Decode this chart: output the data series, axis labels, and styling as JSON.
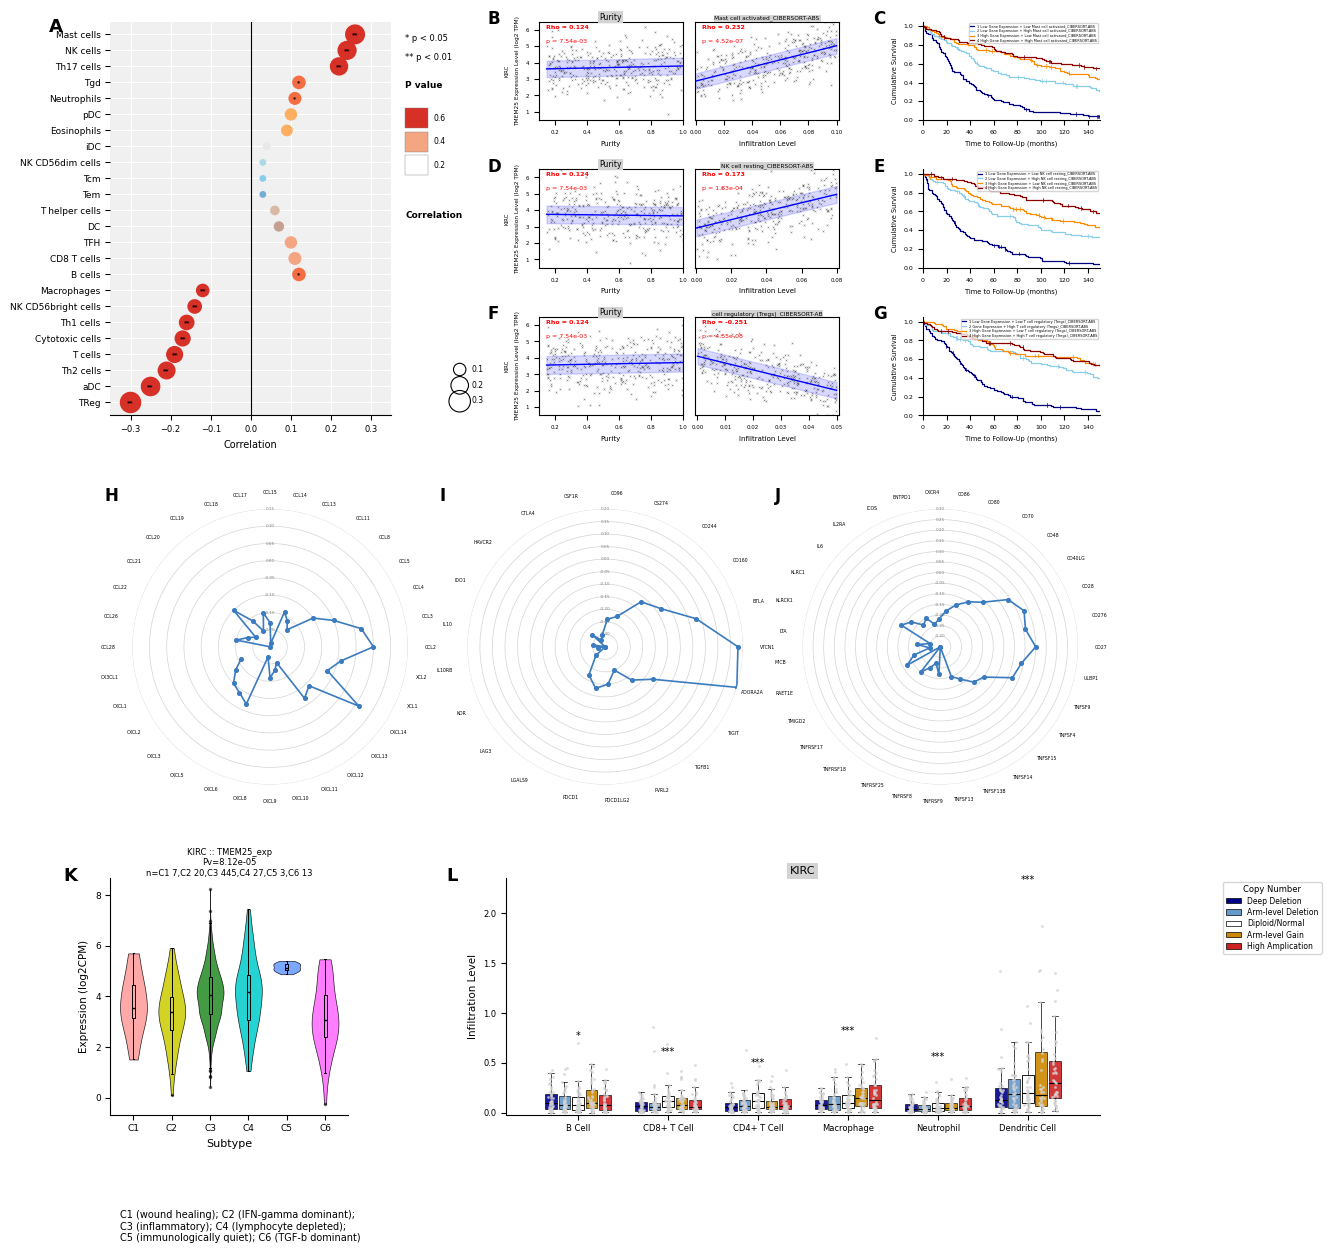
{
  "panel_A": {
    "cell_types": [
      "Mast cells",
      "NK cells",
      "Th17 cells",
      "Tgd",
      "Neutrophils",
      "pDC",
      "Eosinophils",
      "iDC",
      "NK CD56dim cells",
      "Tcm",
      "Tem",
      "T helper cells",
      "DC",
      "TFH",
      "CD8 T cells",
      "B cells",
      "Macrophages",
      "NK CD56bright cells",
      "Th1 cells",
      "Cytotoxic cells",
      "T cells",
      "Th2 cells",
      "aDC",
      "TReg"
    ],
    "correlations": [
      0.26,
      0.24,
      0.22,
      0.12,
      0.11,
      0.1,
      0.09,
      0.04,
      0.03,
      0.03,
      0.03,
      0.06,
      0.07,
      0.1,
      0.11,
      0.12,
      -0.12,
      -0.14,
      -0.16,
      -0.17,
      -0.19,
      -0.21,
      -0.25,
      -0.3
    ],
    "p_values": [
      0.001,
      0.001,
      0.001,
      0.03,
      0.04,
      0.08,
      0.12,
      0.5,
      0.6,
      0.65,
      0.7,
      0.4,
      0.35,
      0.1,
      0.08,
      0.04,
      0.005,
      0.002,
      0.002,
      0.003,
      0.004,
      0.001,
      0.001,
      0.001
    ],
    "sig_labels": [
      "**",
      "**",
      "**",
      "*",
      "*",
      "",
      "",
      "",
      "",
      "",
      "",
      "",
      "",
      "",
      "",
      "*",
      "**",
      "**",
      "**",
      "**",
      "**",
      "**",
      "**",
      "**"
    ],
    "dot_colors_hex": [
      "#d73027",
      "#d73027",
      "#d73027",
      "#f46d43",
      "#f46d43",
      "#fdae61",
      "#fdae61",
      "#e8e8e8",
      "#add8e6",
      "#87ceeb",
      "#74add1",
      "#d8b9a4",
      "#c5a090",
      "#f4a582",
      "#f4a582",
      "#f46d43",
      "#d73027",
      "#d73027",
      "#d73027",
      "#d73027",
      "#d73027",
      "#d73027",
      "#d73027",
      "#d73027"
    ],
    "dot_sizes": [
      0.26,
      0.24,
      0.22,
      0.12,
      0.11,
      0.1,
      0.09,
      0.04,
      0.03,
      0.03,
      0.03,
      0.06,
      0.07,
      0.1,
      0.11,
      0.12,
      0.12,
      0.14,
      0.16,
      0.17,
      0.19,
      0.21,
      0.25,
      0.3
    ]
  },
  "panel_H_labels": [
    "CCL2",
    "CCL3",
    "CCL4",
    "CCL5",
    "CCL8",
    "CCL11",
    "CCL13",
    "CCL14",
    "CCL15",
    "CCL17",
    "CCL18",
    "CCL19",
    "CCL20",
    "CCL21",
    "CCL22",
    "CCL26",
    "CCL28",
    "CX3CL1",
    "CXCL1",
    "CXCL2",
    "CXCL3",
    "CXCL5",
    "CXCL6",
    "CXCL8",
    "CXCL9",
    "CXCL10",
    "CXCL11",
    "CXCL12",
    "CXCL13",
    "CXCL14",
    "XCL1",
    "XCL2"
  ],
  "panel_H_values": [
    0.05,
    0.02,
    -0.05,
    -0.1,
    -0.18,
    -0.16,
    -0.14,
    -0.24,
    -0.18,
    -0.15,
    -0.2,
    -0.16,
    -0.1,
    -0.2,
    -0.18,
    -0.15,
    -0.25,
    -0.27,
    -0.16,
    -0.13,
    -0.1,
    -0.09,
    -0.07,
    -0.22,
    -0.16,
    -0.18,
    -0.2,
    -0.07,
    -0.09,
    0.06,
    -0.07,
    -0.04
  ],
  "panel_H_grid": [
    -0.25,
    -0.2,
    -0.15,
    -0.1,
    -0.05,
    0.0,
    0.05,
    0.1,
    0.15
  ],
  "panel_I_labels": [
    "VTCN1",
    "BTLA",
    "CD160",
    "CD244",
    "CS274",
    "CD96",
    "CSF1R",
    "CTLA4",
    "HAVCR2",
    "IDO1",
    "IL10",
    "IL10RB",
    "KDR",
    "LAG3",
    "LGALS9",
    "PDCD1",
    "PDCD1LG2",
    "PVRL2",
    "TGFB1",
    "TIGIT",
    "ADORA2A"
  ],
  "panel_I_values": [
    0.18,
    0.03,
    -0.08,
    -0.12,
    -0.22,
    -0.24,
    -0.3,
    -0.32,
    -0.28,
    -0.35,
    -0.3,
    -0.32,
    -0.35,
    -0.3,
    -0.22,
    -0.18,
    -0.2,
    -0.25,
    -0.18,
    -0.12,
    0.2
  ],
  "panel_I_grid": [
    -0.35,
    -0.3,
    -0.25,
    -0.2,
    -0.15,
    -0.1,
    -0.05,
    0.0,
    0.05,
    0.1,
    0.15,
    0.2
  ],
  "panel_J_labels": [
    "CD27",
    "CD276",
    "CD28",
    "CD40LG",
    "CD48",
    "CD70",
    "CD80",
    "CD86",
    "CXCR4",
    "ENTPD1",
    "ICOS",
    "IL2RA",
    "IL6",
    "KLRC1",
    "KLRCK1",
    "LTA",
    "MICB",
    "RAET1E",
    "TMIGD2",
    "TNFRSF17",
    "TNFRSF18",
    "TNFRSF25",
    "TNFRSF8",
    "TNFRSF9",
    "TNFSF13",
    "TNFSF13B",
    "TNFSF14",
    "TNFSF15",
    "TNFSF4",
    "TNFSF9",
    "ULBP1"
  ],
  "panel_J_values": [
    0.1,
    0.06,
    0.08,
    0.04,
    -0.06,
    -0.1,
    -0.14,
    -0.18,
    -0.22,
    -0.24,
    -0.2,
    -0.22,
    -0.17,
    -0.14,
    -0.3,
    -0.24,
    -0.3,
    -0.22,
    -0.17,
    -0.35,
    -0.2,
    -0.24,
    -0.27,
    -0.22,
    -0.35,
    -0.2,
    -0.17,
    -0.12,
    -0.1,
    0.02,
    0.04
  ],
  "panel_J_grid": [
    -0.35,
    -0.3,
    -0.25,
    -0.2,
    -0.15,
    -0.1,
    -0.05,
    0.0,
    0.05,
    0.1,
    0.15,
    0.2,
    0.25,
    0.3
  ],
  "km_colors_B": [
    "#000080",
    "#87CEEB",
    "#FF8C00",
    "#8B0000"
  ],
  "km_colors_D": [
    "#000080",
    "#87CEEB",
    "#FF8C00",
    "#8B0000"
  ],
  "km_colors_G": [
    "#000080",
    "#87CEEB",
    "#FF8C00",
    "#8B0000"
  ],
  "viol_colors": [
    "#FF9999",
    "#CCCC00",
    "#228B22",
    "#00CCCC",
    "#6699FF",
    "#FF66FF"
  ],
  "viol_means": [
    3.8,
    3.5,
    4.0,
    3.8,
    5.1,
    3.2
  ],
  "viol_stds": [
    1.2,
    1.3,
    1.1,
    1.4,
    0.2,
    1.2
  ],
  "sample_sizes": [
    7,
    20,
    445,
    27,
    3,
    13
  ],
  "copy_colors": [
    "#00008B",
    "#6699CC",
    "#FFFFFF",
    "#CC8800",
    "#CC2222"
  ],
  "copy_labels": [
    "Deep Deletion",
    "Arm-level Deletion",
    "Diploid/Normal",
    "Arm-level Gain",
    "High Amplication"
  ],
  "cell_groups": [
    "B Cell",
    "CD8+ T Cell",
    "CD4+ T Cell",
    "Macrophage",
    "Neutrophil",
    "Dendritic Cell"
  ],
  "background_color": "#ffffff"
}
